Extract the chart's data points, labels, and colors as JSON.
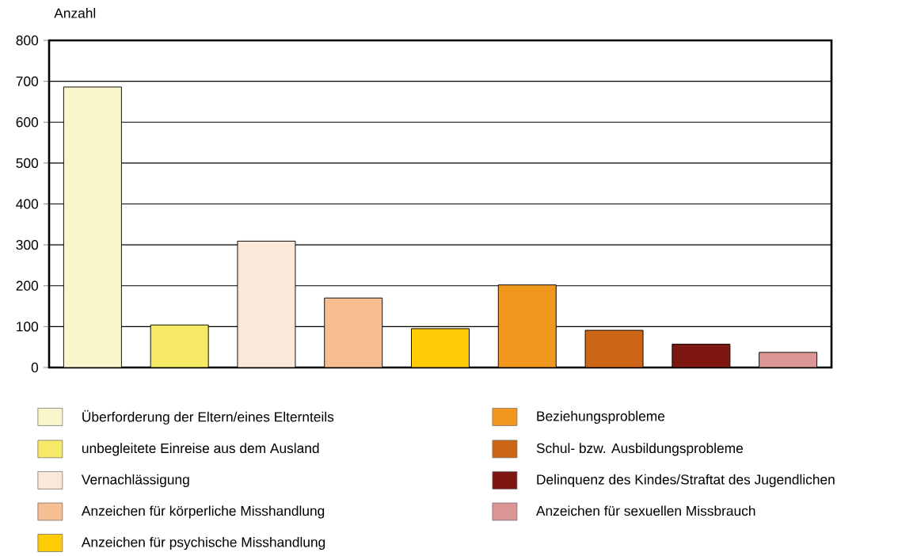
{
  "chart_data": {
    "type": "bar",
    "ylabel": "Anzahl",
    "categories": [
      null,
      null,
      null,
      null,
      null,
      null,
      null,
      null,
      null
    ],
    "series": [
      {
        "name": "Überforderung der Eltern/eines Elternteils",
        "color": "#faf6cc",
        "values": [
          686,
          null,
          null,
          null,
          null,
          null,
          null,
          null,
          null
        ]
      },
      {
        "name": "unbegleitete Einreise aus dem Ausland",
        "color": "#f5e965",
        "values": [
          null,
          104,
          null,
          null,
          null,
          null,
          null,
          null,
          null
        ]
      },
      {
        "name": "Vernachlässigung",
        "color": "#fce8d8",
        "values": [
          null,
          null,
          309,
          null,
          null,
          null,
          null,
          null,
          null
        ]
      },
      {
        "name": "Anzeichen für körperliche Misshandlung",
        "color": "#f7be92",
        "values": [
          null,
          null,
          null,
          170,
          null,
          null,
          null,
          null,
          null
        ]
      },
      {
        "name": "Anzeichen für psychische Misshandlung",
        "color": "#fecb04",
        "values": [
          null,
          null,
          null,
          null,
          95,
          null,
          null,
          null,
          null
        ]
      },
      {
        "name": "Beziehungsprobleme",
        "color": "#f2971d",
        "values": [
          null,
          null,
          null,
          null,
          null,
          202,
          null,
          null,
          null
        ]
      },
      {
        "name": "Schul- bzw. Ausbildungsprobleme",
        "color": "#cc6616",
        "values": [
          null,
          null,
          null,
          null,
          null,
          null,
          91,
          null,
          null
        ]
      },
      {
        "name": "Delinquenz des Kindes/Straftat des Jugendlichen",
        "color": "#7e1611",
        "values": [
          null,
          null,
          null,
          null,
          null,
          null,
          null,
          57,
          null
        ]
      },
      {
        "name": "Anzeichen für sexuellen Missbrauch",
        "color": "#da9595",
        "values": [
          null,
          null,
          null,
          null,
          null,
          null,
          null,
          null,
          37
        ]
      }
    ],
    "ylim": [
      0,
      800
    ],
    "yticks": [
      0,
      100,
      200,
      300,
      400,
      500,
      600,
      700,
      800
    ],
    "grid": "y",
    "legend": "bottom",
    "tick_labels": "y"
  }
}
